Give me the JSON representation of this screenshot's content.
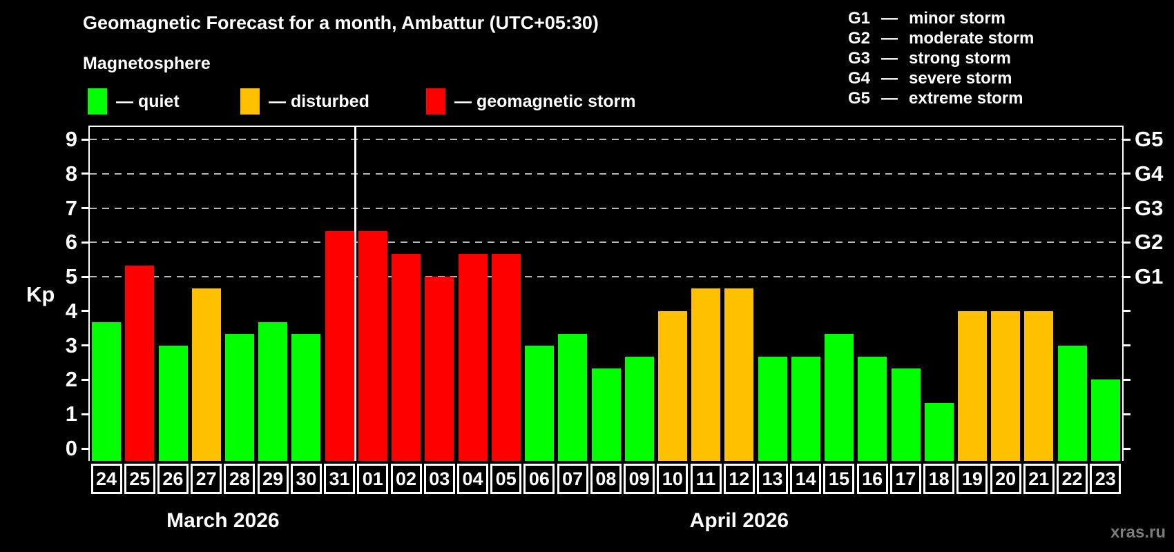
{
  "header": {
    "title": "Geomagnetic Forecast for a month, Ambattur (UTC+05:30)",
    "subtitle": "Magnetosphere"
  },
  "legend": {
    "items": [
      {
        "name": "quiet",
        "label": "— quiet",
        "color": "#00ff00"
      },
      {
        "name": "disturbed",
        "label": "— disturbed",
        "color": "#ffc000"
      },
      {
        "name": "storm",
        "label": "— geomagnetic storm",
        "color": "#ff0000"
      }
    ]
  },
  "g_legend": {
    "items": [
      {
        "code": "G1",
        "dash": "—",
        "label": "minor storm"
      },
      {
        "code": "G2",
        "dash": "—",
        "label": "moderate storm"
      },
      {
        "code": "G3",
        "dash": "—",
        "label": "strong storm"
      },
      {
        "code": "G4",
        "dash": "—",
        "label": "severe storm"
      },
      {
        "code": "G5",
        "dash": "—",
        "label": "extreme storm"
      }
    ]
  },
  "axes": {
    "y_label": "Kp",
    "left_ticks": [
      "0",
      "1",
      "2",
      "3",
      "4",
      "5",
      "6",
      "7",
      "8",
      "9"
    ],
    "right_labels": [
      {
        "value": 5,
        "label": "G1"
      },
      {
        "value": 6,
        "label": "G2"
      },
      {
        "value": 7,
        "label": "G3"
      },
      {
        "value": 8,
        "label": "G4"
      },
      {
        "value": 9,
        "label": "G5"
      }
    ]
  },
  "months": [
    {
      "label": "March 2026",
      "days": 8
    },
    {
      "label": "April 2026",
      "days": 23
    }
  ],
  "watermark": "xras.ru",
  "chart_data": {
    "type": "bar",
    "title": "Geomagnetic Forecast for a month, Ambattur (UTC+05:30)",
    "xlabel": "",
    "ylabel": "Kp",
    "ylim": [
      0,
      9
    ],
    "grid": "horizontal dashed at Kp 5-9 (G1-G5 levels)",
    "legend_position": "top-left and top-right",
    "gridlines": [
      5,
      6,
      7,
      8,
      9
    ],
    "categories": [
      "24",
      "25",
      "26",
      "27",
      "28",
      "29",
      "30",
      "31",
      "01",
      "02",
      "03",
      "04",
      "05",
      "06",
      "07",
      "08",
      "09",
      "10",
      "11",
      "12",
      "13",
      "14",
      "15",
      "16",
      "17",
      "18",
      "19",
      "20",
      "21",
      "22",
      "23"
    ],
    "values": [
      3.67,
      5.33,
      3.0,
      4.67,
      3.33,
      3.67,
      3.33,
      6.33,
      6.33,
      5.67,
      5.0,
      5.67,
      5.67,
      3.0,
      3.33,
      2.33,
      2.67,
      4.0,
      4.67,
      4.67,
      2.67,
      2.67,
      3.33,
      2.67,
      2.33,
      1.33,
      4.0,
      4.0,
      4.0,
      3.0,
      2.0
    ],
    "statuses": [
      "quiet",
      "storm",
      "quiet",
      "disturbed",
      "quiet",
      "quiet",
      "quiet",
      "storm",
      "storm",
      "storm",
      "storm",
      "storm",
      "storm",
      "quiet",
      "quiet",
      "quiet",
      "quiet",
      "disturbed",
      "disturbed",
      "disturbed",
      "quiet",
      "quiet",
      "quiet",
      "quiet",
      "quiet",
      "quiet",
      "disturbed",
      "disturbed",
      "disturbed",
      "quiet",
      "quiet"
    ],
    "status_colors": {
      "quiet": "#00ff00",
      "disturbed": "#ffc000",
      "storm": "#ff0000"
    },
    "month_separator_after_index": 7
  }
}
